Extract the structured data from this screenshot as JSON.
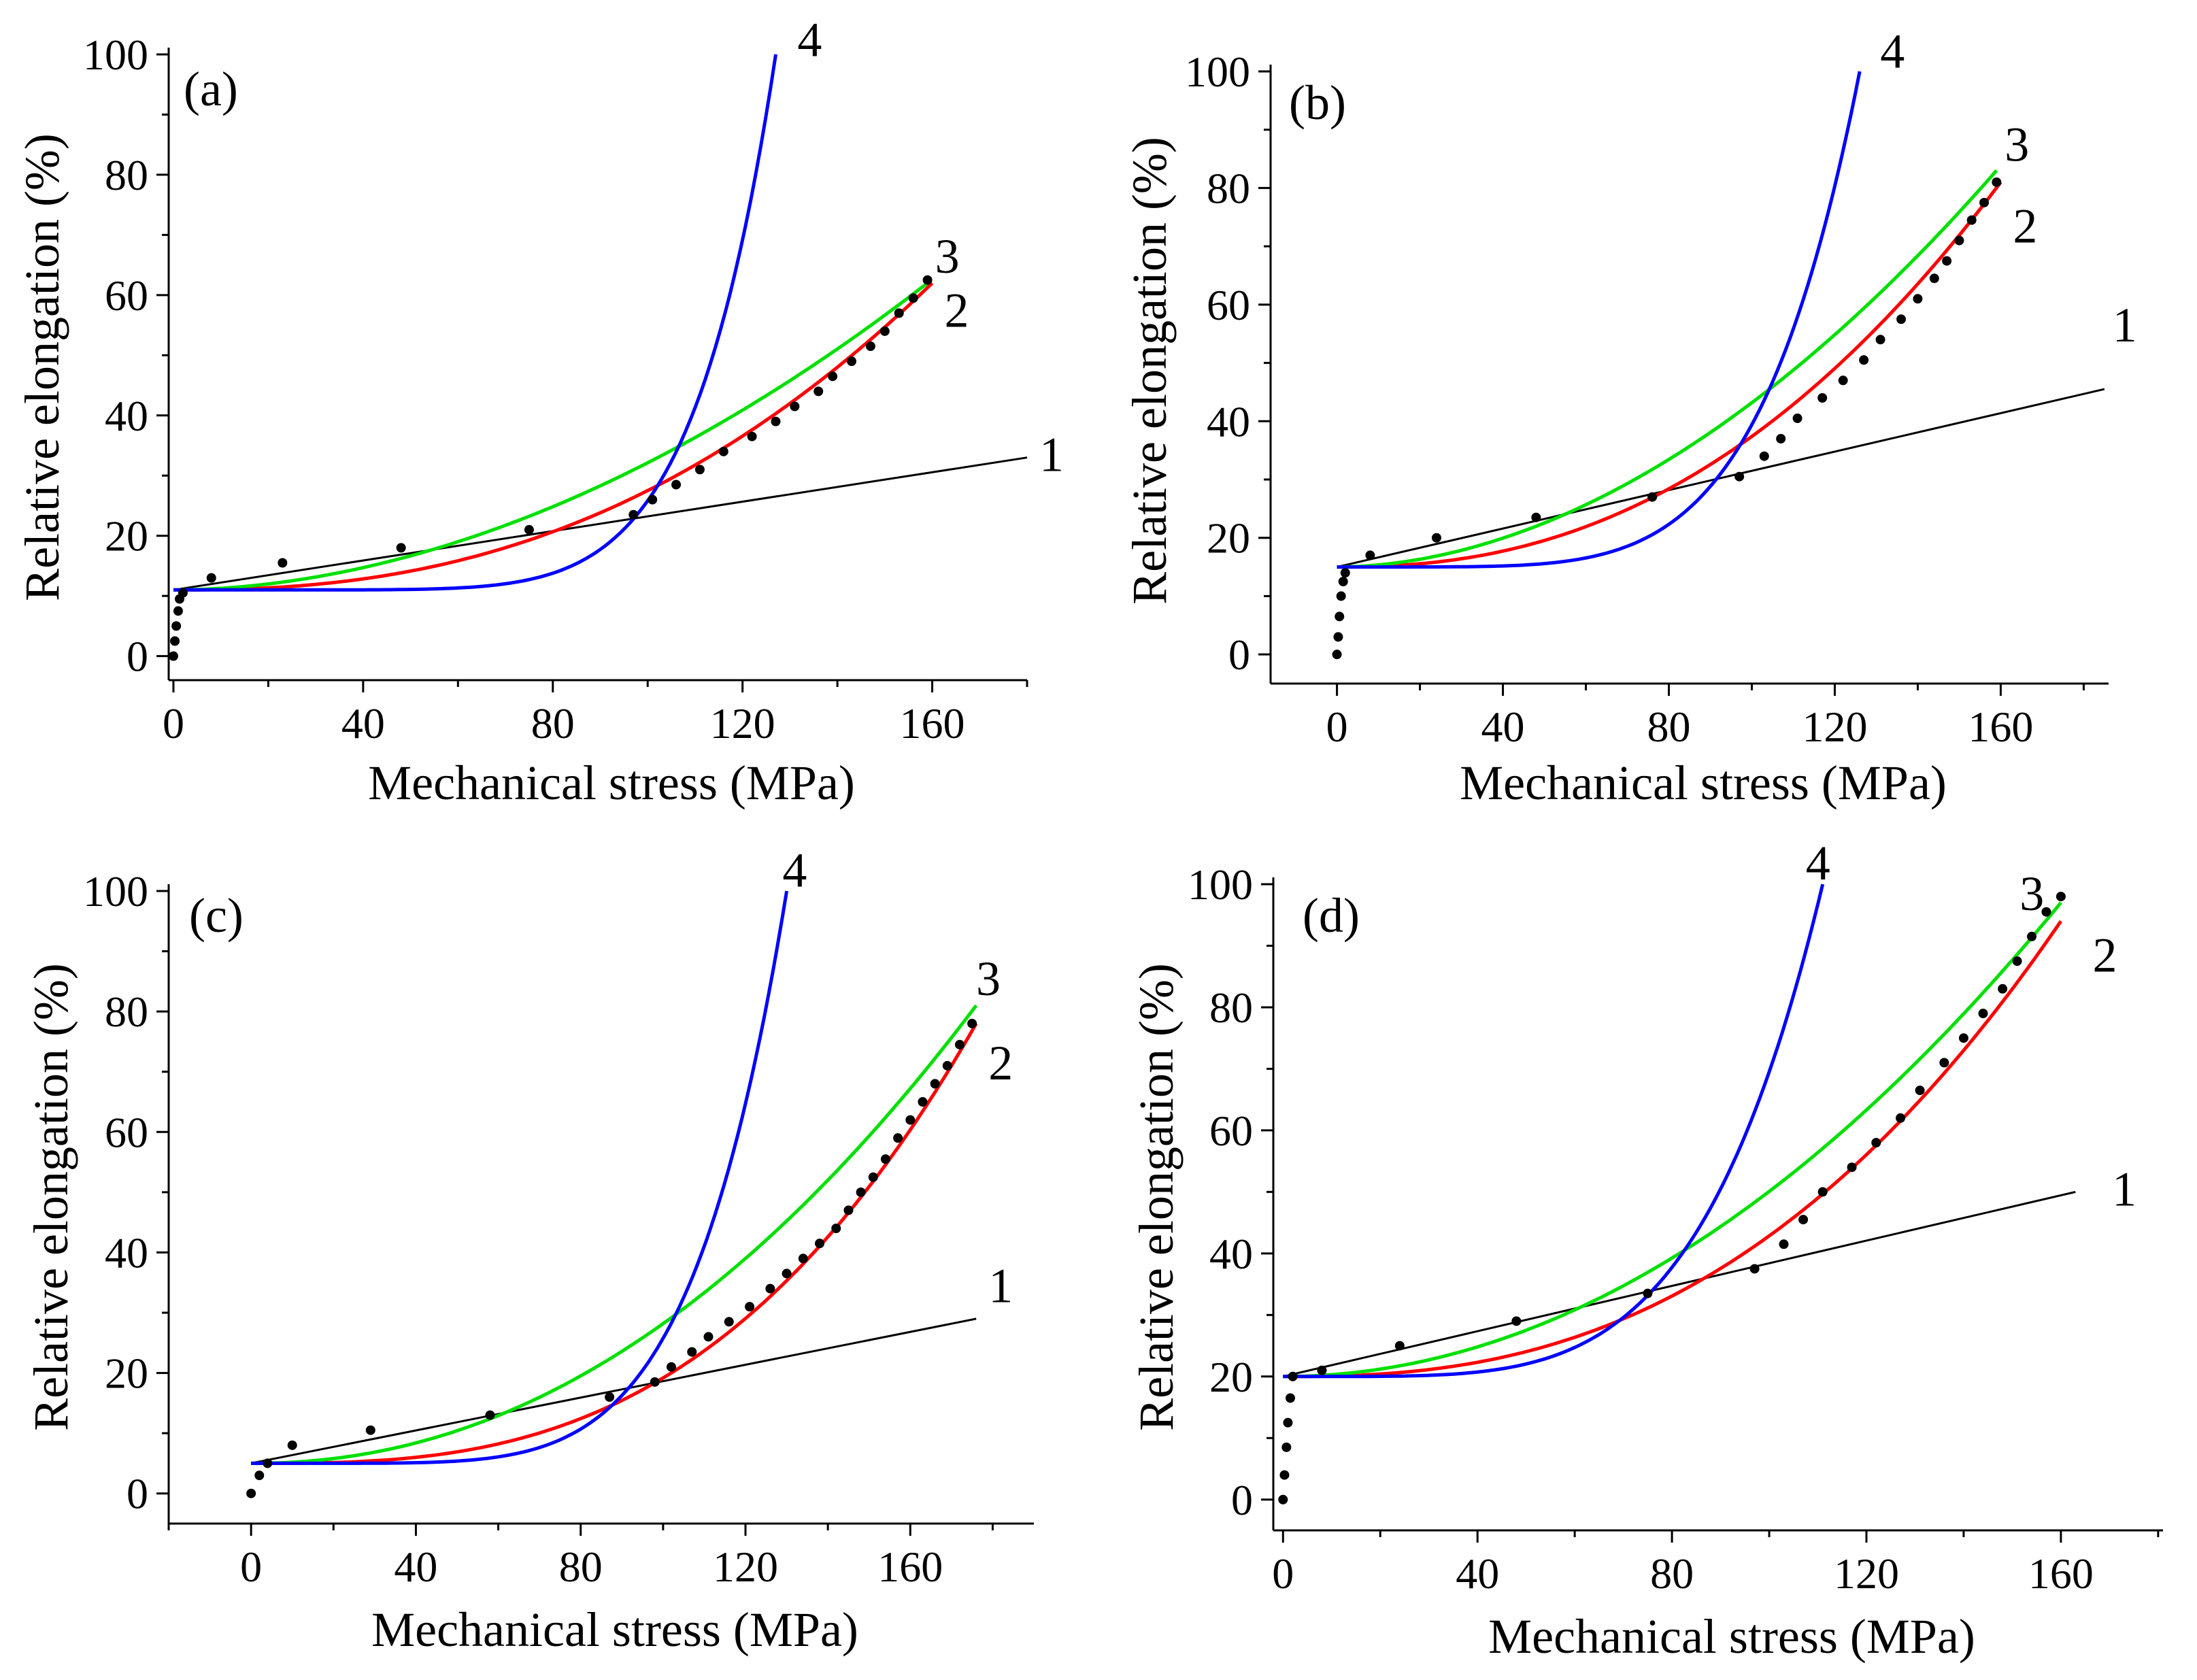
{
  "chart_data": [
    {
      "type": "line",
      "panel_label": "(a)",
      "xlabel": "Mechanical stress (MPa)",
      "ylabel": "Relative elongation (%)",
      "xlim": [
        -1,
        180
      ],
      "ylim": [
        -4,
        100
      ],
      "xticks": [
        0,
        40,
        80,
        120,
        160
      ],
      "yticks": [
        0,
        20,
        40,
        60,
        80,
        100
      ],
      "grid": false,
      "series": [
        {
          "name": "1",
          "kind": "linear",
          "color": "#000000",
          "x": [
            0,
            180
          ],
          "y": [
            11,
            33
          ],
          "label_at": [
            180,
            33
          ]
        },
        {
          "name": "2",
          "kind": "power",
          "color": "#ff0000",
          "a": 11,
          "b": 51,
          "n": 2.4,
          "xmax": 160,
          "label_at": [
            160,
            57
          ]
        },
        {
          "name": "3",
          "kind": "power",
          "color": "#00e000",
          "a": 11,
          "b": 51,
          "n": 1.9,
          "xmax": 159,
          "label_at": [
            158,
            66
          ]
        },
        {
          "name": "4",
          "kind": "power",
          "color": "#0000ff",
          "a": 11,
          "b": 89,
          "n": 7.5,
          "xmax": 127,
          "label_at": [
            129,
            102
          ]
        }
      ],
      "points": {
        "x": [
          0,
          0.3,
          0.6,
          1,
          1.3,
          2,
          8,
          23,
          48,
          75,
          97,
          101,
          106,
          111,
          116,
          122,
          127,
          131,
          136,
          139,
          143,
          147,
          150,
          153,
          156,
          159
        ],
        "y": [
          0,
          2.5,
          5,
          7.5,
          9.5,
          10.5,
          13,
          15.5,
          18,
          21,
          23.5,
          26,
          28.5,
          31,
          34,
          36.5,
          39,
          41.5,
          44,
          46.5,
          49,
          51.5,
          54,
          57,
          59.5,
          62.5
        ]
      }
    },
    {
      "type": "line",
      "panel_label": "(b)",
      "xlabel": "Mechanical stress (MPa)",
      "ylabel": "Relative elongation (%)",
      "xlim": [
        -16,
        186
      ],
      "ylim": [
        -5,
        100
      ],
      "xticks": [
        0,
        40,
        80,
        120,
        160
      ],
      "yticks": [
        0,
        20,
        40,
        60,
        80,
        100
      ],
      "grid": false,
      "series": [
        {
          "name": "1",
          "kind": "linear",
          "color": "#000000",
          "x": [
            0,
            185
          ],
          "y": [
            15,
            45.5
          ],
          "label_at": [
            184,
            56
          ]
        },
        {
          "name": "2",
          "kind": "power",
          "color": "#ff0000",
          "a": 15,
          "b": 66,
          "n": 2.3,
          "xmax": 160,
          "label_at": [
            160,
            73
          ]
        },
        {
          "name": "3",
          "kind": "power",
          "color": "#00e000",
          "a": 15,
          "b": 68,
          "n": 1.9,
          "xmax": 159,
          "label_at": [
            158,
            87
          ]
        },
        {
          "name": "4",
          "kind": "power",
          "color": "#0000ff",
          "a": 15,
          "b": 85,
          "n": 5.4,
          "xmax": 126,
          "label_at": [
            128,
            103
          ]
        }
      ],
      "points": {
        "x": [
          0,
          0.3,
          0.6,
          1,
          1.5,
          2,
          8,
          24,
          48,
          76,
          97,
          103,
          107,
          111,
          117,
          122,
          127,
          131,
          136,
          140,
          144,
          147,
          150,
          153,
          156,
          159
        ],
        "y": [
          0,
          3,
          6.5,
          10,
          12.5,
          14,
          17,
          20,
          23.5,
          27,
          30.5,
          34,
          37,
          40.5,
          44,
          47,
          50.5,
          54,
          57.5,
          61,
          64.5,
          67.5,
          71,
          74.5,
          77.5,
          81
        ]
      }
    },
    {
      "type": "line",
      "panel_label": "(c)",
      "xlabel": "Mechanical stress (MPa)",
      "ylabel": "Relative elongation (%)",
      "xlim": [
        -20,
        190
      ],
      "ylim": [
        -5,
        100
      ],
      "xticks": [
        0,
        40,
        80,
        120,
        160
      ],
      "yticks": [
        0,
        20,
        40,
        60,
        80,
        100
      ],
      "grid": false,
      "series": [
        {
          "name": "1",
          "kind": "linear",
          "color": "#000000",
          "x": [
            0,
            176
          ],
          "y": [
            5,
            29
          ],
          "label_at": [
            176,
            34
          ]
        },
        {
          "name": "2",
          "kind": "power",
          "color": "#ff0000",
          "a": 5,
          "b": 73,
          "n": 2.9,
          "xmax": 176,
          "label_at": [
            176,
            71
          ]
        },
        {
          "name": "3",
          "kind": "power",
          "color": "#00e000",
          "a": 5,
          "b": 76,
          "n": 2.1,
          "xmax": 176,
          "label_at": [
            173,
            85
          ]
        },
        {
          "name": "4",
          "kind": "power",
          "color": "#0000ff",
          "a": 5,
          "b": 95,
          "n": 5.8,
          "xmax": 130,
          "label_at": [
            126,
            103
          ]
        }
      ],
      "points": {
        "x": [
          0,
          2,
          4,
          10,
          29,
          58,
          87,
          98,
          102,
          107,
          111,
          116,
          121,
          126,
          130,
          134,
          138,
          142,
          145,
          148,
          151,
          154,
          157,
          160,
          163,
          166,
          169,
          172,
          175
        ],
        "y": [
          0,
          3,
          5,
          8,
          10.5,
          13,
          16,
          18.5,
          21,
          23.5,
          26,
          28.5,
          31,
          34,
          36.5,
          39,
          41.5,
          44,
          47,
          50,
          52.5,
          55.5,
          59,
          62,
          65,
          68,
          71,
          74.5,
          78
        ]
      }
    },
    {
      "type": "line",
      "panel_label": "(d)",
      "xlabel": "Mechanical stress (MPa)",
      "ylabel": "Relative elongation (%)",
      "xlim": [
        -2,
        181
      ],
      "ylim": [
        -5,
        100
      ],
      "xticks": [
        0,
        40,
        80,
        120,
        160
      ],
      "yticks": [
        0,
        20,
        40,
        60,
        80,
        100
      ],
      "grid": false,
      "series": [
        {
          "name": "1",
          "kind": "linear",
          "color": "#000000",
          "x": [
            0,
            163
          ],
          "y": [
            20,
            50
          ],
          "label_at": [
            168,
            50
          ]
        },
        {
          "name": "2",
          "kind": "power",
          "color": "#ff0000",
          "a": 20,
          "b": 74,
          "n": 2.5,
          "xmax": 160,
          "label_at": [
            164,
            88
          ]
        },
        {
          "name": "3",
          "kind": "power",
          "color": "#00e000",
          "a": 20,
          "b": 77,
          "n": 2.0,
          "xmax": 160,
          "label_at": [
            149,
            98
          ]
        },
        {
          "name": "4",
          "kind": "power",
          "color": "#0000ff",
          "a": 20,
          "b": 80,
          "n": 4.6,
          "xmax": 111,
          "label_at": [
            105,
            103
          ]
        }
      ],
      "points": {
        "x": [
          0,
          0.3,
          0.7,
          1,
          1.5,
          2,
          8,
          24,
          48,
          75,
          97,
          103,
          107,
          111,
          117,
          122,
          127,
          131,
          136,
          140,
          144,
          148,
          151,
          154,
          157,
          160
        ],
        "y": [
          0,
          4,
          8.5,
          12.5,
          16.5,
          20,
          21,
          25,
          29,
          33.5,
          37.5,
          41.5,
          45.5,
          50,
          54,
          58,
          62,
          66.5,
          71,
          75,
          79,
          83,
          87.5,
          91.5,
          95.5,
          98
        ]
      }
    }
  ]
}
